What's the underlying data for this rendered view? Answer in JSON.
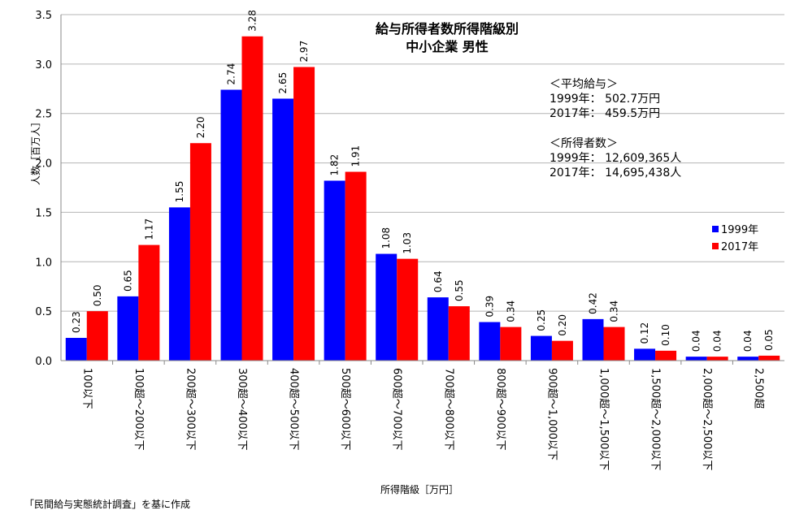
{
  "chart_data": {
    "type": "bar",
    "title": "給与所得者数所得階級別",
    "subtitle": "中小企業 男性",
    "xlabel": "所得階級［万円］",
    "ylabel": "人数［百万人］",
    "ylim": [
      0,
      3.5
    ],
    "yticks": [
      "0.0",
      "0.5",
      "1.0",
      "1.5",
      "2.0",
      "2.5",
      "3.0",
      "3.5"
    ],
    "grid": true,
    "legend_position": "right",
    "categories": [
      "100以下",
      "100超～200以下",
      "200超～300以下",
      "300超～400以下",
      "400超～500以下",
      "500超～600以下",
      "600超～700以下",
      "700超～800以下",
      "800超～900以下",
      "900超～1,000以下",
      "1,000超～1,500以下",
      "1,500超～2,000以下",
      "2,000超～2,500以下",
      "2,500超"
    ],
    "series": [
      {
        "name": "1999年",
        "color": "#0000ff",
        "values": [
          0.23,
          0.65,
          1.55,
          2.74,
          2.65,
          1.82,
          1.08,
          0.64,
          0.39,
          0.25,
          0.42,
          0.12,
          0.04,
          0.04
        ],
        "labels": [
          "0.23",
          "0.65",
          "1.55",
          "2.74",
          "2.65",
          "1.82",
          "1.08",
          "0.64",
          "0.39",
          "0.25",
          "0.42",
          "0.12",
          "0.04",
          "0.04"
        ]
      },
      {
        "name": "2017年",
        "color": "#ff0000",
        "values": [
          0.5,
          1.17,
          2.2,
          3.28,
          2.97,
          1.91,
          1.03,
          0.55,
          0.34,
          0.2,
          0.34,
          0.1,
          0.04,
          0.05
        ],
        "labels": [
          "0.50",
          "1.17",
          "2.20",
          "3.28",
          "2.97",
          "1.91",
          "1.03",
          "0.55",
          "0.34",
          "0.20",
          "0.34",
          "0.10",
          "0.04",
          "0.05"
        ]
      }
    ]
  },
  "info": {
    "salary_header": "＜平均給与＞",
    "salary_1999": "1999年： 502.7万円",
    "salary_2017": "2017年： 459.5万円",
    "count_header": "＜所得者数＞",
    "count_1999": "1999年： 12,609,365人",
    "count_2017": "2017年： 14,695,438人"
  },
  "source": "「民間給与実態統計調査」を基に作成"
}
